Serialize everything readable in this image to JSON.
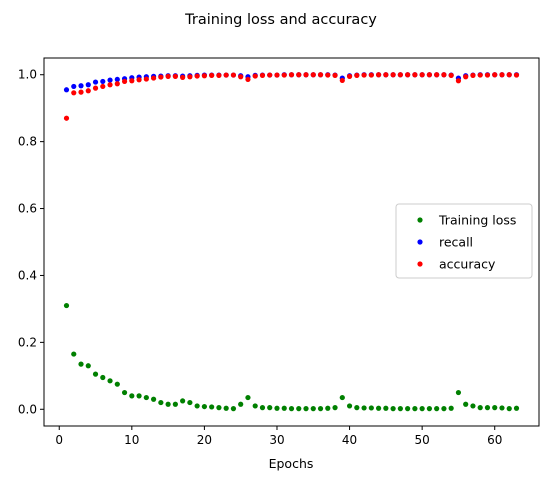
{
  "chart_data": {
    "type": "scatter",
    "title": "Training loss and accuracy",
    "xlabel": "Epochs",
    "ylabel": "",
    "xlim": [
      -2.1,
      66.1
    ],
    "ylim": [
      -0.05,
      1.05
    ],
    "xticks": [
      0,
      10,
      20,
      30,
      40,
      50,
      60
    ],
    "yticks": [
      0.0,
      0.2,
      0.4,
      0.6,
      0.8,
      1.0
    ],
    "grid": false,
    "legend_position": "center-right",
    "x": [
      1,
      2,
      3,
      4,
      5,
      6,
      7,
      8,
      9,
      10,
      11,
      12,
      13,
      14,
      15,
      16,
      17,
      18,
      19,
      20,
      21,
      22,
      23,
      24,
      25,
      26,
      27,
      28,
      29,
      30,
      31,
      32,
      33,
      34,
      35,
      36,
      37,
      38,
      39,
      40,
      41,
      42,
      43,
      44,
      45,
      46,
      47,
      48,
      49,
      50,
      51,
      52,
      53,
      54,
      55,
      56,
      57,
      58,
      59,
      60,
      61,
      62,
      63
    ],
    "series": [
      {
        "name": "Training loss",
        "color": "#008000",
        "values": [
          0.31,
          0.165,
          0.135,
          0.13,
          0.105,
          0.095,
          0.085,
          0.075,
          0.05,
          0.04,
          0.04,
          0.035,
          0.03,
          0.02,
          0.015,
          0.015,
          0.025,
          0.02,
          0.01,
          0.008,
          0.007,
          0.005,
          0.003,
          0.002,
          0.015,
          0.035,
          0.01,
          0.005,
          0.005,
          0.003,
          0.003,
          0.002,
          0.002,
          0.002,
          0.002,
          0.002,
          0.003,
          0.005,
          0.035,
          0.01,
          0.005,
          0.004,
          0.004,
          0.003,
          0.003,
          0.002,
          0.002,
          0.002,
          0.002,
          0.002,
          0.002,
          0.002,
          0.002,
          0.003,
          0.05,
          0.015,
          0.01,
          0.005,
          0.005,
          0.005,
          0.004,
          0.002,
          0.003
        ]
      },
      {
        "name": "recall",
        "color": "#0000ff",
        "values": [
          0.955,
          0.965,
          0.967,
          0.97,
          0.978,
          0.98,
          0.984,
          0.986,
          0.988,
          0.991,
          0.993,
          0.994,
          0.995,
          0.996,
          0.997,
          0.997,
          0.996,
          0.997,
          0.998,
          0.999,
          0.999,
          0.999,
          0.999,
          0.999,
          0.997,
          0.994,
          0.998,
          0.999,
          0.999,
          0.999,
          1.0,
          1.0,
          1.0,
          1.0,
          1.0,
          1.0,
          1.0,
          0.999,
          0.99,
          0.997,
          0.999,
          1.0,
          1.0,
          1.0,
          1.0,
          1.0,
          1.0,
          1.0,
          1.0,
          1.0,
          1.0,
          1.0,
          1.0,
          0.999,
          0.99,
          0.997,
          0.999,
          1.0,
          1.0,
          1.0,
          1.0,
          1.0,
          1.0
        ]
      },
      {
        "name": "accuracy",
        "color": "#ff0000",
        "values": [
          0.87,
          0.946,
          0.948,
          0.952,
          0.96,
          0.965,
          0.97,
          0.973,
          0.98,
          0.982,
          0.985,
          0.987,
          0.99,
          0.993,
          0.995,
          0.995,
          0.992,
          0.994,
          0.996,
          0.997,
          0.998,
          0.998,
          0.999,
          0.999,
          0.994,
          0.986,
          0.996,
          0.998,
          0.999,
          0.999,
          0.999,
          1.0,
          1.0,
          1.0,
          1.0,
          1.0,
          0.999,
          0.998,
          0.983,
          0.995,
          0.998,
          0.999,
          0.999,
          1.0,
          1.0,
          1.0,
          1.0,
          1.0,
          1.0,
          1.0,
          1.0,
          1.0,
          1.0,
          0.998,
          0.982,
          0.994,
          0.998,
          0.999,
          0.999,
          1.0,
          1.0,
          1.0,
          0.999
        ]
      }
    ]
  }
}
